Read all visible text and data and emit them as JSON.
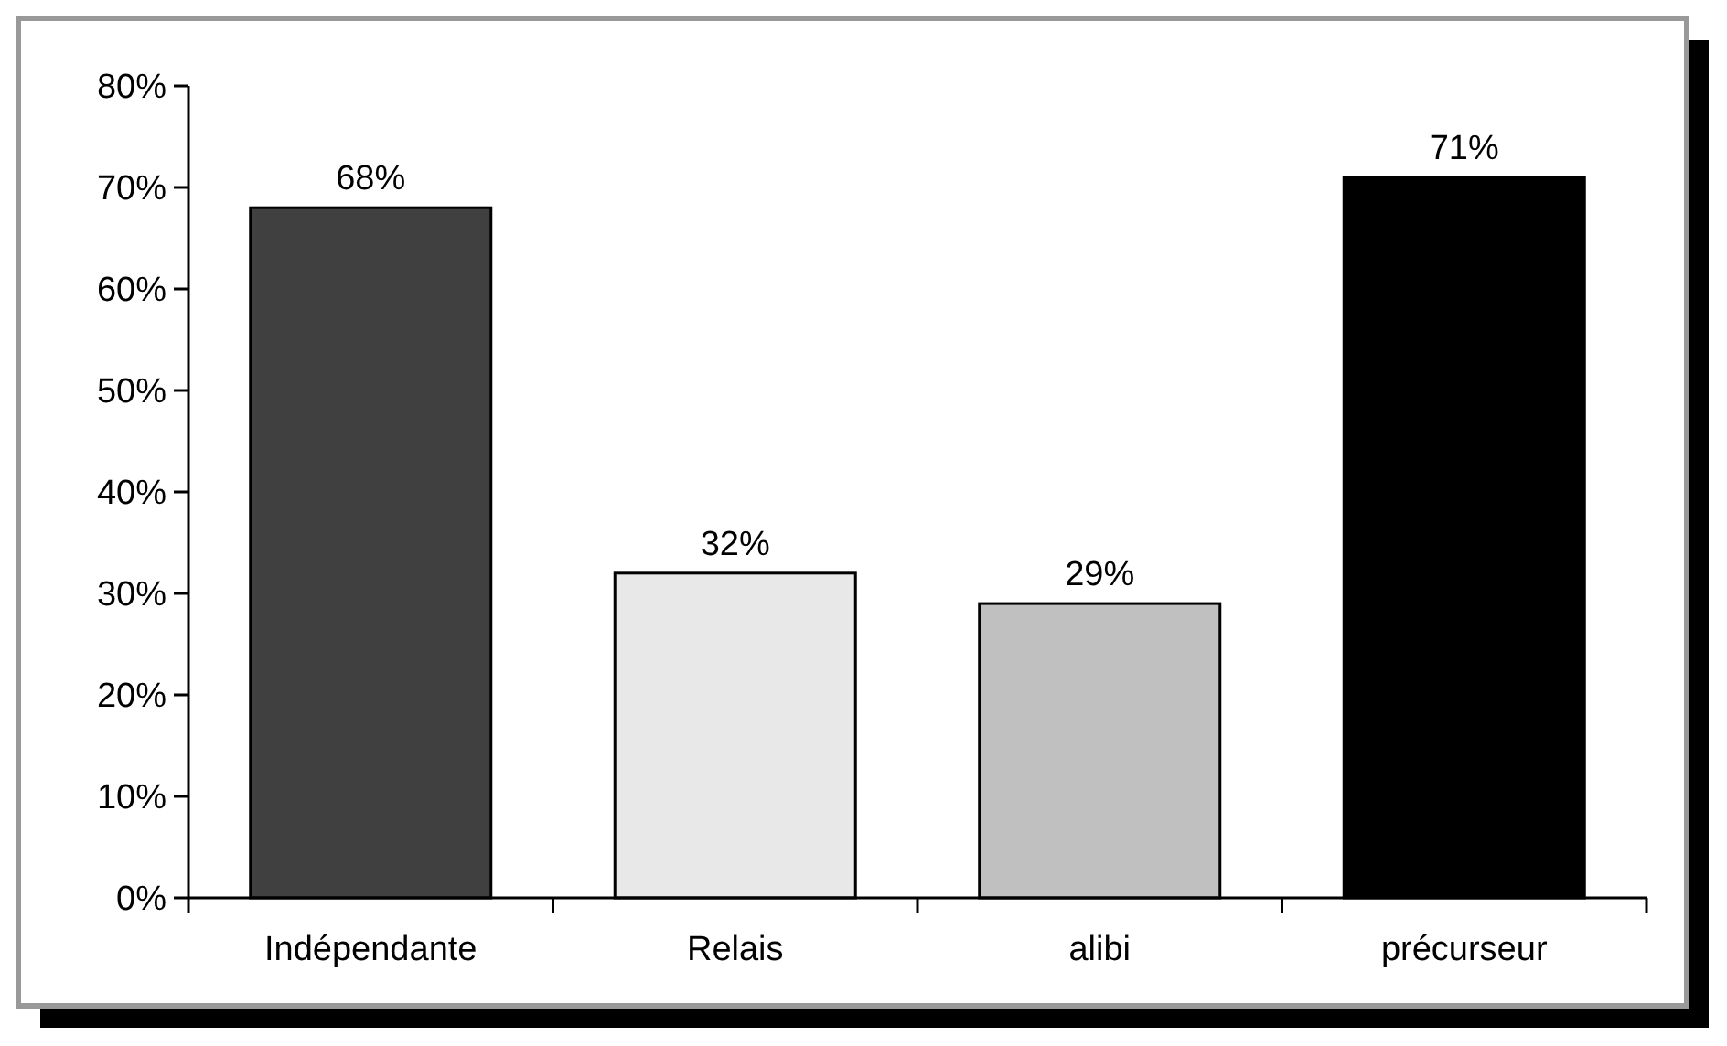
{
  "chart_data": {
    "type": "bar",
    "categories": [
      "Indépendante",
      "Relais",
      "alibi",
      "précurseur"
    ],
    "values": [
      68,
      32,
      29,
      71
    ],
    "colors": [
      "#404040",
      "#e8e8e8",
      "#c0c0c0",
      "#000000"
    ],
    "value_labels": [
      "68%",
      "32%",
      "29%",
      "71%"
    ],
    "ylim": [
      0,
      80
    ],
    "yticks": [
      {
        "value": 0,
        "label": "0%"
      },
      {
        "value": 10,
        "label": "10%"
      },
      {
        "value": 20,
        "label": "20%"
      },
      {
        "value": 30,
        "label": "30%"
      },
      {
        "value": 40,
        "label": "40%"
      },
      {
        "value": 50,
        "label": "50%"
      },
      {
        "value": 60,
        "label": "60%"
      },
      {
        "value": 70,
        "label": "70%"
      },
      {
        "value": 80,
        "label": "80%"
      }
    ],
    "grid": false
  }
}
